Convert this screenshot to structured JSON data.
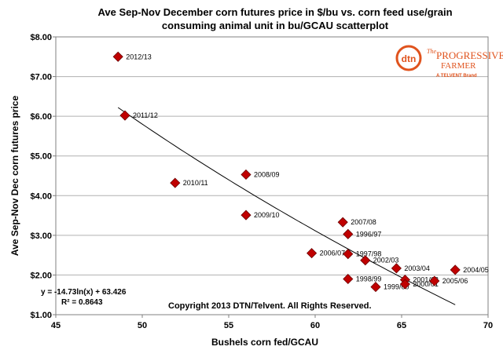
{
  "colors": {
    "marker": "#c00000",
    "marker_stroke": "#6b0000",
    "trend": "#000000",
    "grid": "#b0b0b0",
    "logo": "#e0531d"
  },
  "logo": {
    "icon_text": "dtn",
    "brand_line1": "The",
    "brand_line2": "PROGRESSIVE",
    "brand_line3": "FARMER",
    "brand_sub": "A TELVENT Brand"
  },
  "chart_data": {
    "type": "scatter",
    "title_line1": "Ave Sep-Nov December corn futures price in $/bu vs. corn feed use/grain",
    "title_line2": "consuming animal unit in bu/GCAU scatterplot",
    "xlabel": "Bushels corn fed/GCAU",
    "ylabel": "Ave Sep-Nov Dec corn futures price",
    "xlim": [
      45,
      70
    ],
    "ylim": [
      1.0,
      8.0
    ],
    "x_ticks": [
      "45",
      "50",
      "55",
      "60",
      "65",
      "70"
    ],
    "y_ticks": [
      "$1.00",
      "$2.00",
      "$3.00",
      "$4.00",
      "$5.00",
      "$6.00",
      "$7.00",
      "$8.00"
    ],
    "grid": {
      "horizontal": true,
      "vertical": false
    },
    "points": [
      {
        "label": "2012/13",
        "x": 48.6,
        "y": 7.5
      },
      {
        "label": "2011/12",
        "x": 49.0,
        "y": 6.02
      },
      {
        "label": "2010/11",
        "x": 51.9,
        "y": 4.32
      },
      {
        "label": "2008/09",
        "x": 56.0,
        "y": 4.53
      },
      {
        "label": "2009/10",
        "x": 56.0,
        "y": 3.51
      },
      {
        "label": "2006/07",
        "x": 59.8,
        "y": 2.55
      },
      {
        "label": "2007/08",
        "x": 61.6,
        "y": 3.33
      },
      {
        "label": "1996/97",
        "x": 61.9,
        "y": 3.03
      },
      {
        "label": "1997/98",
        "x": 61.9,
        "y": 2.53
      },
      {
        "label": "1998/99",
        "x": 61.9,
        "y": 1.9
      },
      {
        "label": "2002/03",
        "x": 62.9,
        "y": 2.37
      },
      {
        "label": "1999/00",
        "x": 63.5,
        "y": 1.7
      },
      {
        "label": "2003/04",
        "x": 64.7,
        "y": 2.17
      },
      {
        "label": "2001/02",
        "x": 65.2,
        "y": 1.88
      },
      {
        "label": "2000/01",
        "x": 65.2,
        "y": 1.77
      },
      {
        "label": "2005/06",
        "x": 66.9,
        "y": 1.85
      },
      {
        "label": "2004/05",
        "x": 68.1,
        "y": 2.13
      }
    ],
    "trendline": {
      "type": "log",
      "a": -14.73,
      "b": 63.426,
      "x_range": [
        48.6,
        68.1
      ]
    },
    "equation": "y = -14.73ln(x) + 63.426",
    "r2": "R² = 0.8643",
    "copyright": "Copyright 2013 DTN/Telvent. All Rights Reserved."
  }
}
